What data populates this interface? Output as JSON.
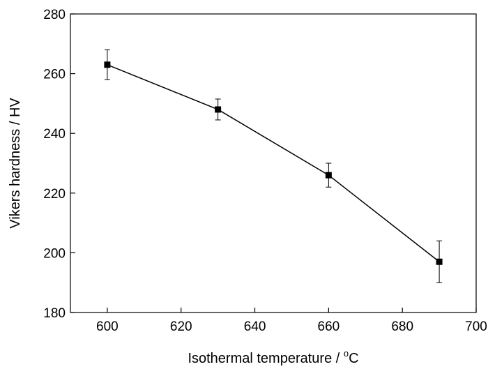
{
  "chart_data": {
    "type": "line",
    "xlabel": "Isothermal temperature / ",
    "xlabel_unit_sup": "o",
    "xlabel_unit": "C",
    "ylabel": "Vikers hardness / HV",
    "xlim": [
      590,
      700
    ],
    "ylim": [
      180,
      280
    ],
    "x_ticks": [
      600,
      620,
      640,
      660,
      680,
      700
    ],
    "y_ticks": [
      180,
      200,
      220,
      240,
      260,
      280
    ],
    "grid": false,
    "series": [
      {
        "marker": "square",
        "color": "#000000",
        "points": [
          {
            "x": 600,
            "y": 263,
            "err": 5
          },
          {
            "x": 630,
            "y": 248,
            "err": 3.5
          },
          {
            "x": 660,
            "y": 226,
            "err": 4
          },
          {
            "x": 690,
            "y": 197,
            "err": 7
          }
        ]
      }
    ]
  }
}
